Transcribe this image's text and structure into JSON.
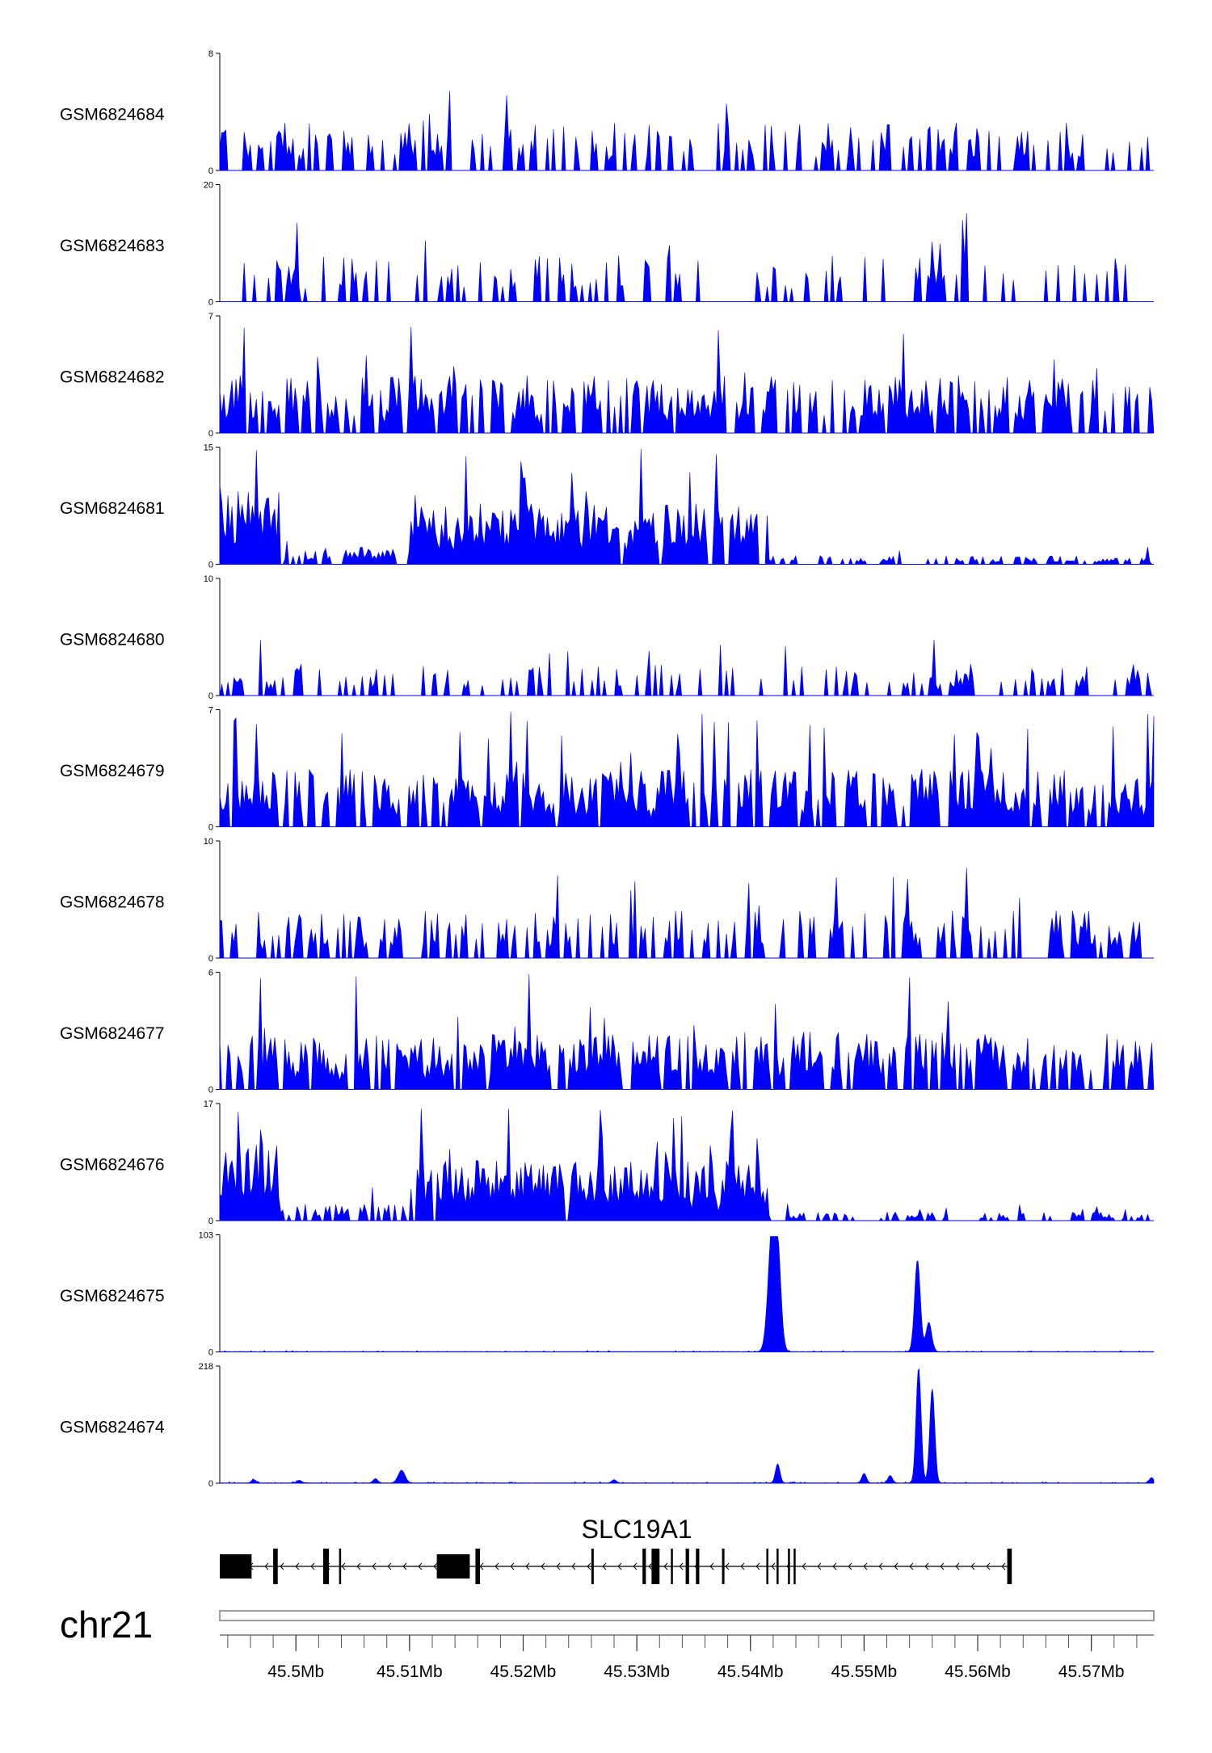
{
  "chart_data": {
    "type": "area",
    "chromosome": "chr21",
    "x_range_mb": [
      45.4933,
      45.5755
    ],
    "x_ticks": [
      {
        "value": 45.5,
        "label": "45.5Mb"
      },
      {
        "value": 45.51,
        "label": "45.51Mb"
      },
      {
        "value": 45.52,
        "label": "45.52Mb"
      },
      {
        "value": 45.53,
        "label": "45.53Mb"
      },
      {
        "value": 45.54,
        "label": "45.54Mb"
      },
      {
        "value": 45.55,
        "label": "45.55Mb"
      },
      {
        "value": 45.56,
        "label": "45.56Mb"
      },
      {
        "value": 45.57,
        "label": "45.57Mb"
      }
    ],
    "tracks": [
      {
        "name": "GSM6824684",
        "ymax": 8,
        "ymin_label": "0",
        "ymax_label": "8",
        "pattern": "sparse",
        "seed": 11
      },
      {
        "name": "GSM6824683",
        "ymax": 20,
        "ymin_label": "0",
        "ymax_label": "20",
        "pattern": "very_sparse",
        "seed": 23
      },
      {
        "name": "GSM6824682",
        "ymax": 7,
        "ymin_label": "0",
        "ymax_label": "7",
        "pattern": "dense",
        "seed": 37
      },
      {
        "name": "GSM6824681",
        "ymax": 15,
        "ymin_label": "0",
        "ymax_label": "15",
        "pattern": "left_enriched",
        "seed": 41
      },
      {
        "name": "GSM6824680",
        "ymax": 10,
        "ymin_label": "0",
        "ymax_label": "10",
        "pattern": "sparse_low",
        "seed": 53
      },
      {
        "name": "GSM6824679",
        "ymax": 7,
        "ymin_label": "0",
        "ymax_label": "7",
        "pattern": "dense",
        "seed": 67
      },
      {
        "name": "GSM6824678",
        "ymax": 10,
        "ymin_label": "0",
        "ymax_label": "10",
        "pattern": "sparse",
        "seed": 71
      },
      {
        "name": "GSM6824677",
        "ymax": 6,
        "ymin_label": "0",
        "ymax_label": "6",
        "pattern": "dense",
        "seed": 83
      },
      {
        "name": "GSM6824676",
        "ymax": 17,
        "ymin_label": "0",
        "ymax_label": "17",
        "pattern": "left_enriched",
        "seed": 97
      },
      {
        "name": "GSM6824675",
        "ymax": 103,
        "ymin_label": "0",
        "ymax_label": "103",
        "pattern": "peaks",
        "seed": 101,
        "peaks": [
          {
            "x": 45.5419,
            "height": 103,
            "width": 0.00035
          },
          {
            "x": 45.5424,
            "height": 75,
            "width": 0.0003
          },
          {
            "x": 45.5547,
            "height": 82,
            "width": 0.00025
          },
          {
            "x": 45.5557,
            "height": 26,
            "width": 0.00025
          }
        ]
      },
      {
        "name": "GSM6824674",
        "ymax": 218,
        "ymin_label": "0",
        "ymax_label": "218",
        "pattern": "peaks",
        "seed": 113,
        "peaks": [
          {
            "x": 45.5548,
            "height": 218,
            "width": 0.00022
          },
          {
            "x": 45.556,
            "height": 178,
            "width": 0.00022
          },
          {
            "x": 45.5424,
            "height": 36,
            "width": 0.0002
          },
          {
            "x": 45.5093,
            "height": 24,
            "width": 0.0003
          },
          {
            "x": 45.55,
            "height": 18,
            "width": 0.0002
          },
          {
            "x": 45.5523,
            "height": 14,
            "width": 0.0002
          },
          {
            "x": 45.5753,
            "height": 10,
            "width": 0.0002
          },
          {
            "x": 45.507,
            "height": 8,
            "width": 0.0002
          },
          {
            "x": 45.4963,
            "height": 6,
            "width": 0.0002
          },
          {
            "x": 45.528,
            "height": 6,
            "width": 0.0002
          },
          {
            "x": 45.5003,
            "height": 5,
            "width": 0.0002
          }
        ]
      }
    ],
    "gene": {
      "name": "SLC19A1",
      "strand": "-",
      "start": 45.4933,
      "end": 45.563,
      "exons": [
        {
          "start": 45.4933,
          "end": 45.4961,
          "thick": true
        },
        {
          "start": 45.498,
          "end": 45.4984,
          "thick": true
        },
        {
          "start": 45.5024,
          "end": 45.5029,
          "thick": false
        },
        {
          "start": 45.5038,
          "end": 45.504,
          "thick": false
        },
        {
          "start": 45.5124,
          "end": 45.5153,
          "thick": true
        },
        {
          "start": 45.5158,
          "end": 45.5162,
          "thick": true
        },
        {
          "start": 45.526,
          "end": 45.5262,
          "thick": true
        },
        {
          "start": 45.5305,
          "end": 45.5308,
          "thick": true
        },
        {
          "start": 45.5313,
          "end": 45.532,
          "thick": true
        },
        {
          "start": 45.533,
          "end": 45.5332,
          "thick": false
        },
        {
          "start": 45.5343,
          "end": 45.5346,
          "thick": true
        },
        {
          "start": 45.5352,
          "end": 45.5355,
          "thick": false
        },
        {
          "start": 45.5375,
          "end": 45.5377,
          "thick": true
        },
        {
          "start": 45.5414,
          "end": 45.5415,
          "thick": false
        },
        {
          "start": 45.5423,
          "end": 45.5424,
          "thick": false
        },
        {
          "start": 45.5433,
          "end": 45.5434,
          "thick": false
        },
        {
          "start": 45.5438,
          "end": 45.544,
          "thick": false
        },
        {
          "start": 45.5626,
          "end": 45.563,
          "thick": true
        }
      ]
    }
  }
}
